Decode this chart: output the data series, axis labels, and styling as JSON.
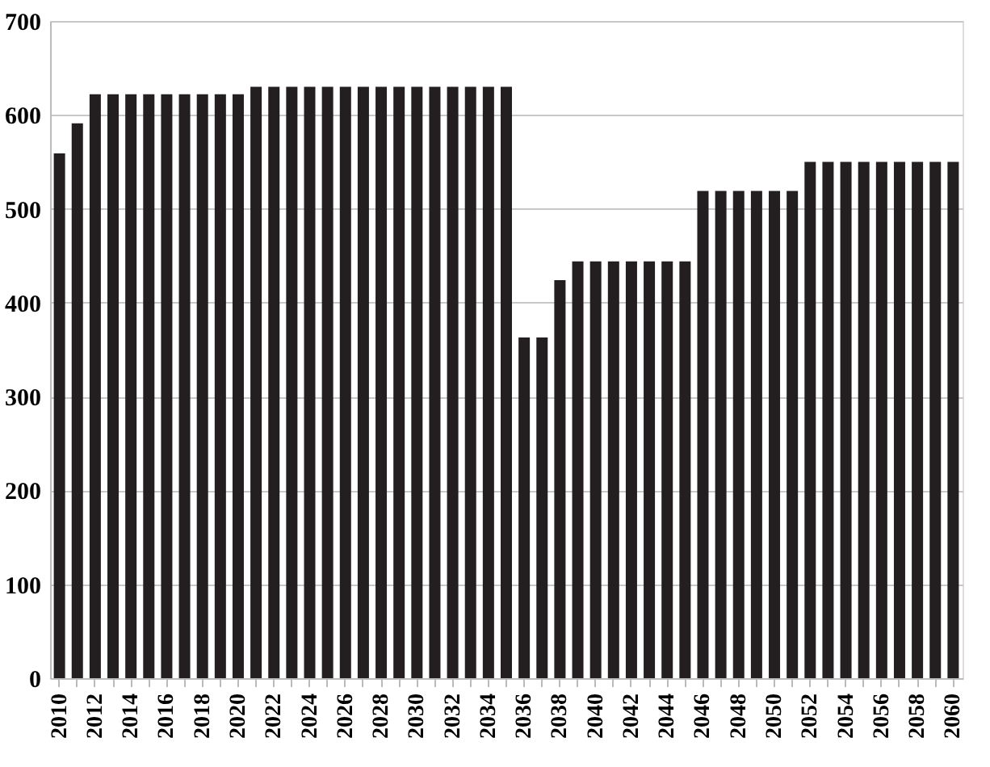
{
  "chart_data": {
    "type": "bar",
    "categories": [
      "2010",
      null,
      "2012",
      null,
      "2014",
      null,
      "2016",
      null,
      "2018",
      null,
      "2020",
      null,
      "2022",
      null,
      "2024",
      null,
      "2026",
      null,
      "2028",
      null,
      "2030",
      null,
      "2032",
      null,
      "2034",
      null,
      "2036",
      null,
      "2038",
      null,
      "2040",
      null,
      "2042",
      null,
      "2044",
      null,
      "2046",
      null,
      "2048",
      null,
      "2050",
      null,
      "2052",
      null,
      "2054",
      null,
      "2056",
      null,
      "2058",
      null,
      "2060"
    ],
    "values": [
      559,
      591,
      622,
      622,
      622,
      622,
      622,
      622,
      622,
      622,
      622,
      630,
      630,
      630,
      630,
      630,
      630,
      630,
      630,
      630,
      630,
      630,
      630,
      630,
      630,
      630,
      363,
      363,
      424,
      444,
      444,
      444,
      444,
      444,
      444,
      444,
      519,
      519,
      519,
      519,
      519,
      519,
      550,
      550,
      550,
      550,
      550,
      550,
      550,
      550,
      550
    ],
    "color": "#231f20",
    "ylim": [
      0,
      700
    ],
    "yticks": [
      0,
      100,
      200,
      300,
      400,
      500,
      600,
      700
    ],
    "grid": "y"
  }
}
